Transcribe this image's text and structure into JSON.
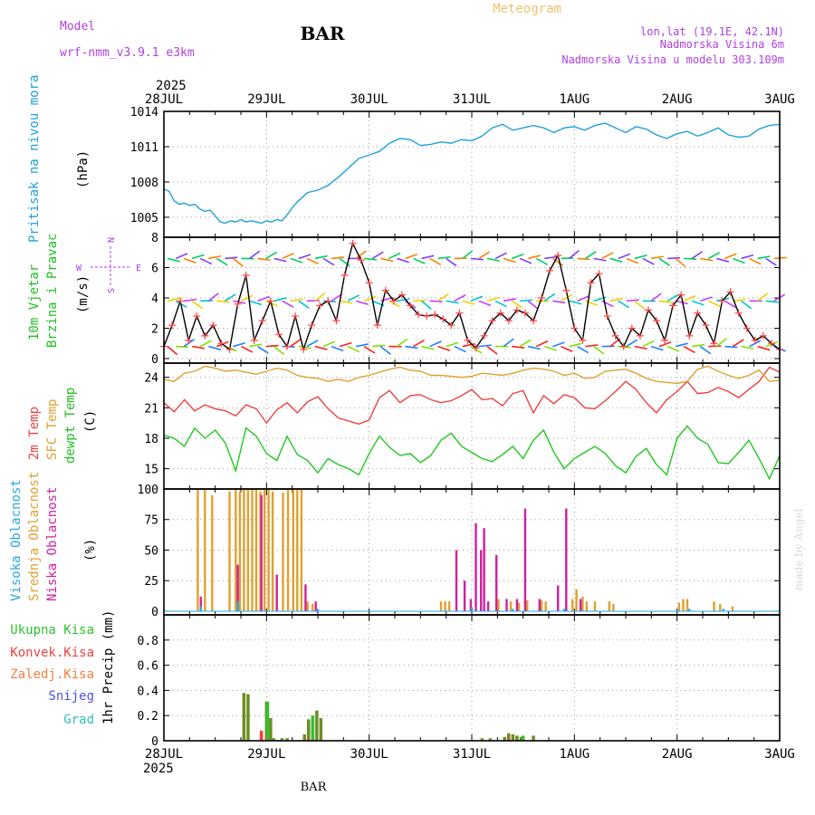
{
  "header": {
    "model_label": "Model",
    "model_name": "wrf-nmm_v3.9.1  e3km",
    "station": "BAR",
    "product": "Meteogram",
    "lonlat": "lon,lat (19.1E, 42.1N)",
    "altitude": "Nadmorska Visina 6m",
    "model_altitude": "Nadmorska Visina u modelu 303.109m",
    "year": "2025",
    "footer_station": "BAR",
    "credit": "made by Angel"
  },
  "colors": {
    "pressure": "#1fa0dc",
    "temp2m": "#f04040",
    "sfc_temp": "#e0a030",
    "dewpt": "#20c820",
    "cloud_high": "#2aa8e0",
    "cloud_mid": "#e0a030",
    "cloud_low": "#d020a0",
    "precip_total": "#30c030",
    "precip_conv": "#f04040",
    "precip_frz": "#f08040",
    "snow": "#5050e0",
    "hail": "#30c0c0",
    "wind_text": "#20c020",
    "wind_dir_text": "#b040e0",
    "bar_olive": "#6b8e23"
  },
  "chart_data": [
    {
      "type": "line",
      "name": "pressure-panel",
      "ylabel_main": "Pritisak na nivou mora",
      "unit": "(hPa)",
      "ylim": [
        1003.3,
        1014
      ],
      "yticks": [
        1005,
        1008,
        1011,
        1014
      ],
      "x_ticks": [
        "28JUL",
        "29JUL",
        "30JUL",
        "31JUL",
        "1AUG",
        "2AUG",
        "3AUG"
      ],
      "series": [
        {
          "color": "pressure",
          "x": [
            0,
            0.05,
            0.1,
            0.15,
            0.2,
            0.25,
            0.3,
            0.35,
            0.4,
            0.45,
            0.5,
            0.55,
            0.6,
            0.65,
            0.7,
            0.75,
            0.8,
            0.85,
            0.9,
            0.95,
            1.0,
            1.05,
            1.1,
            1.15,
            1.2,
            1.25,
            1.3,
            1.35,
            1.4,
            1.5,
            1.6,
            1.7,
            1.8,
            1.9,
            2.0,
            2.1,
            2.2,
            2.3,
            2.4,
            2.5,
            2.6,
            2.7,
            2.8,
            2.9,
            3.0,
            3.1,
            3.2,
            3.3,
            3.4,
            3.5,
            3.6,
            3.7,
            3.8,
            3.9,
            4.0,
            4.1,
            4.2,
            4.3,
            4.4,
            4.5,
            4.6,
            4.7,
            4.8,
            4.9,
            5.0,
            5.1,
            5.2,
            5.3,
            5.4,
            5.5,
            5.6,
            5.7,
            5.8,
            5.9,
            6.0
          ],
          "values": [
            1007.4,
            1007.2,
            1006.4,
            1006.1,
            1006.2,
            1006.0,
            1006.1,
            1005.7,
            1005.5,
            1005.6,
            1005.1,
            1004.6,
            1004.5,
            1004.7,
            1004.6,
            1004.8,
            1004.6,
            1004.7,
            1004.6,
            1004.5,
            1004.7,
            1004.6,
            1004.8,
            1004.7,
            1005.2,
            1005.8,
            1006.3,
            1006.7,
            1007.1,
            1007.3,
            1007.7,
            1008.4,
            1009.2,
            1010.0,
            1010.3,
            1010.6,
            1011.3,
            1011.7,
            1011.6,
            1011.1,
            1011.2,
            1011.4,
            1011.3,
            1011.6,
            1011.5,
            1011.9,
            1012.6,
            1012.9,
            1012.4,
            1012.6,
            1012.8,
            1012.6,
            1012.2,
            1012.6,
            1012.7,
            1012.4,
            1012.8,
            1013.0,
            1012.6,
            1012.2,
            1012.7,
            1012.5,
            1012.0,
            1011.7,
            1012.1,
            1012.3,
            1011.9,
            1012.2,
            1012.6,
            1012.0,
            1011.8,
            1011.9,
            1012.5,
            1012.8,
            1012.9
          ]
        }
      ]
    },
    {
      "type": "line",
      "name": "wind-panel",
      "ylabel_main": "10m Vjetar",
      "ylabel_sub": "Brzina i Pravac",
      "unit": "(m/s)",
      "compass": [
        "W",
        "E",
        "S",
        "N"
      ],
      "ylim": [
        -0.3,
        8
      ],
      "yticks": [
        0,
        2,
        4,
        6,
        8
      ],
      "series": [
        {
          "color": "#000000",
          "x": [
            0,
            0.08,
            0.16,
            0.24,
            0.32,
            0.4,
            0.48,
            0.56,
            0.64,
            0.72,
            0.8,
            0.88,
            0.96,
            1.04,
            1.12,
            1.2,
            1.28,
            1.36,
            1.44,
            1.52,
            1.6,
            1.68,
            1.76,
            1.84,
            1.92,
            2.0,
            2.08,
            2.16,
            2.24,
            2.32,
            2.4,
            2.48,
            2.56,
            2.64,
            2.72,
            2.8,
            2.88,
            2.96,
            3.04,
            3.12,
            3.2,
            3.28,
            3.36,
            3.44,
            3.52,
            3.6,
            3.68,
            3.76,
            3.84,
            3.92,
            4.0,
            4.08,
            4.16,
            4.24,
            4.32,
            4.4,
            4.48,
            4.56,
            4.64,
            4.72,
            4.8,
            4.88,
            4.96,
            5.04,
            5.12,
            5.2,
            5.28,
            5.36,
            5.44,
            5.52,
            5.6,
            5.68,
            5.76,
            5.84,
            5.92,
            6.0
          ],
          "values": [
            0.8,
            2.2,
            3.8,
            1.2,
            2.8,
            1.5,
            2.2,
            1.0,
            0.6,
            3.6,
            5.5,
            1.2,
            2.5,
            3.8,
            1.6,
            0.8,
            2.8,
            0.6,
            2.2,
            3.5,
            3.8,
            2.5,
            5.5,
            7.6,
            6.5,
            5.0,
            2.2,
            4.5,
            3.8,
            4.2,
            3.5,
            2.9,
            2.8,
            2.9,
            2.6,
            2.2,
            3.0,
            1.2,
            0.7,
            1.5,
            2.5,
            3.0,
            2.5,
            3.2,
            3.0,
            2.5,
            4.0,
            5.8,
            6.8,
            4.5,
            2.0,
            1.2,
            5.0,
            5.6,
            2.8,
            1.5,
            0.8,
            2.0,
            1.5,
            3.2,
            2.5,
            1.2,
            3.5,
            4.2,
            1.5,
            3.0,
            2.2,
            1.0,
            3.8,
            4.4,
            3.0,
            2.0,
            1.2,
            1.5,
            1.0,
            0.6
          ]
        }
      ],
      "wind_barb_rows": [
        0.8,
        3.8,
        6.6
      ]
    },
    {
      "type": "line",
      "name": "temperature-panel",
      "ylabel_main": "2m Temp",
      "ylabel_mid": "SFC Temp",
      "ylabel_sub": "dewpt Temp",
      "unit": "(C)",
      "ylim": [
        13,
        25.4
      ],
      "yticks": [
        15,
        18,
        21,
        24
      ],
      "series": [
        {
          "color": "temp2m",
          "x": [
            0,
            0.1,
            0.2,
            0.3,
            0.4,
            0.5,
            0.6,
            0.7,
            0.8,
            0.9,
            1.0,
            1.1,
            1.2,
            1.3,
            1.4,
            1.5,
            1.6,
            1.7,
            1.8,
            1.9,
            2.0,
            2.1,
            2.2,
            2.3,
            2.4,
            2.5,
            2.6,
            2.7,
            2.8,
            2.9,
            3.0,
            3.1,
            3.2,
            3.3,
            3.4,
            3.5,
            3.6,
            3.7,
            3.8,
            3.9,
            4.0,
            4.1,
            4.2,
            4.3,
            4.4,
            4.5,
            4.6,
            4.7,
            4.8,
            4.9,
            5.0,
            5.1,
            5.2,
            5.3,
            5.4,
            5.5,
            5.6,
            5.7,
            5.8,
            5.9,
            6.0
          ],
          "values": [
            21.5,
            20.6,
            21.8,
            20.7,
            21.3,
            20.9,
            20.7,
            20.2,
            21.3,
            20.9,
            19.5,
            20.8,
            21.5,
            20.5,
            21.6,
            22.1,
            20.9,
            20.0,
            19.7,
            19.4,
            19.8,
            22.0,
            22.7,
            21.5,
            22.2,
            22.3,
            21.8,
            21.5,
            21.7,
            22.2,
            22.8,
            21.8,
            21.9,
            21.2,
            22.4,
            22.7,
            20.5,
            22.2,
            21.4,
            22.3,
            22.0,
            21.0,
            20.9,
            21.7,
            22.6,
            23.6,
            22.8,
            21.5,
            20.5,
            21.8,
            22.6,
            23.6,
            22.4,
            22.5,
            23.0,
            22.6,
            22.0,
            22.8,
            23.6,
            25.0,
            24.5
          ]
        },
        {
          "color": "sfc_temp",
          "x": [
            0,
            0.1,
            0.2,
            0.3,
            0.4,
            0.5,
            0.6,
            0.7,
            0.8,
            0.9,
            1.0,
            1.1,
            1.2,
            1.3,
            1.4,
            1.5,
            1.6,
            1.7,
            1.8,
            1.9,
            2.0,
            2.1,
            2.2,
            2.3,
            2.4,
            2.5,
            2.6,
            2.7,
            2.8,
            2.9,
            3.0,
            3.1,
            3.2,
            3.3,
            3.4,
            3.5,
            3.6,
            3.7,
            3.8,
            3.9,
            4.0,
            4.1,
            4.2,
            4.3,
            4.4,
            4.5,
            4.6,
            4.7,
            4.8,
            4.9,
            5.0,
            5.1,
            5.2,
            5.3,
            5.4,
            5.5,
            5.6,
            5.7,
            5.8,
            5.9,
            6.0
          ],
          "values": [
            23.8,
            23.6,
            24.4,
            24.6,
            25.1,
            24.9,
            24.6,
            24.7,
            24.5,
            24.3,
            24.6,
            24.9,
            24.7,
            24.2,
            24.0,
            23.9,
            23.6,
            23.8,
            23.6,
            24.0,
            24.2,
            24.5,
            24.8,
            25.0,
            24.7,
            24.6,
            24.2,
            24.2,
            24.1,
            24.0,
            24.1,
            24.4,
            24.3,
            24.2,
            24.4,
            24.7,
            24.9,
            24.8,
            24.6,
            24.2,
            24.4,
            23.9,
            24.0,
            24.6,
            24.7,
            24.8,
            24.4,
            23.9,
            23.6,
            23.5,
            23.4,
            23.6,
            24.8,
            25.1,
            24.6,
            24.2,
            23.9,
            24.2,
            24.7,
            23.6,
            23.7
          ]
        },
        {
          "color": "dewpt",
          "x": [
            0,
            0.1,
            0.2,
            0.3,
            0.4,
            0.5,
            0.6,
            0.7,
            0.8,
            0.9,
            1.0,
            1.1,
            1.2,
            1.3,
            1.4,
            1.5,
            1.6,
            1.7,
            1.8,
            1.9,
            2.0,
            2.1,
            2.2,
            2.3,
            2.4,
            2.5,
            2.6,
            2.7,
            2.8,
            2.9,
            3.0,
            3.1,
            3.2,
            3.3,
            3.4,
            3.5,
            3.6,
            3.7,
            3.8,
            3.9,
            4.0,
            4.1,
            4.2,
            4.3,
            4.4,
            4.5,
            4.6,
            4.7,
            4.8,
            4.9,
            5.0,
            5.1,
            5.2,
            5.3,
            5.4,
            5.5,
            5.6,
            5.7,
            5.8,
            5.9,
            6.0
          ],
          "values": [
            18.3,
            18.0,
            17.2,
            19.0,
            18.0,
            18.8,
            17.5,
            14.8,
            19.0,
            18.2,
            16.5,
            15.8,
            18.2,
            16.4,
            15.8,
            14.6,
            16.0,
            15.4,
            15.0,
            14.4,
            16.5,
            18.2,
            17.1,
            16.3,
            16.5,
            15.6,
            16.3,
            17.8,
            18.5,
            17.2,
            16.6,
            16.0,
            15.7,
            16.4,
            17.2,
            16.0,
            17.8,
            18.8,
            16.6,
            15.0,
            16.0,
            16.6,
            17.2,
            16.5,
            15.3,
            14.6,
            16.2,
            17.0,
            15.4,
            14.4,
            18.0,
            19.2,
            18.0,
            17.4,
            15.6,
            15.5,
            16.6,
            17.8,
            16.0,
            14.0,
            16.3
          ]
        }
      ]
    },
    {
      "type": "bar",
      "name": "cloud-panel",
      "ylabel_high": "Visoka Oblacnost",
      "ylabel_mid": "Srednja Oblacnost",
      "ylabel_low": "Niska Oblacnost",
      "unit": "(%)",
      "ylim": [
        -3,
        100
      ],
      "yticks": [
        0,
        25,
        50,
        75,
        100
      ],
      "series": [
        {
          "color": "cloud_mid",
          "x": [
            0.33,
            0.4,
            0.47,
            0.64,
            0.7,
            0.74,
            0.78,
            0.82,
            0.86,
            0.9,
            0.94,
            0.98,
            1.02,
            1.06,
            1.16,
            1.21,
            1.26,
            1.3,
            1.34,
            1.4,
            1.45,
            2.7,
            2.74,
            2.78,
            3.26,
            3.38,
            3.46,
            3.54,
            3.68,
            3.72,
            3.92,
            3.98,
            4.02,
            4.08,
            4.12,
            4.2,
            4.34,
            4.38,
            5.02,
            5.06,
            5.1,
            5.36,
            5.42,
            5.54
          ],
          "values": [
            100,
            100,
            95,
            98,
            100,
            98,
            100,
            100,
            100,
            100,
            98,
            100,
            100,
            98,
            97,
            100,
            100,
            100,
            100,
            8,
            6,
            8,
            8,
            8,
            10,
            8,
            7,
            9,
            9,
            8,
            9,
            10,
            18,
            12,
            8,
            8,
            8,
            6,
            7,
            10,
            10,
            8,
            6,
            4
          ]
        },
        {
          "color": "cloud_low",
          "x": [
            0.36,
            0.72,
            0.95,
            1.1,
            1.38,
            1.48,
            2.85,
            2.93,
            2.99,
            3.04,
            3.09,
            3.12,
            3.16,
            3.24,
            3.34,
            3.44,
            3.52,
            3.66,
            3.84,
            3.92,
            4.06
          ],
          "values": [
            12,
            38,
            95,
            30,
            22,
            8,
            50,
            25,
            10,
            72,
            50,
            68,
            8,
            46,
            10,
            10,
            84,
            10,
            21,
            84,
            10
          ]
        },
        {
          "color": "cloud_high",
          "x": [
            0.36,
            0.72,
            1.5,
            3.0,
            3.4,
            3.9,
            5.12,
            5.45
          ],
          "values": [
            4,
            8,
            2,
            3,
            2,
            2,
            2,
            2
          ]
        }
      ]
    },
    {
      "type": "bar",
      "name": "precip-panel",
      "ylabel_total": "Ukupna Kisa",
      "ylabel_conv": "Konvek.Kisa",
      "ylabel_frz": "Zaledj.Kisa",
      "ylabel_snow": "Snijeg",
      "ylabel_hail": "Grad",
      "unit": "1hr Precip (mm)",
      "ylim": [
        0,
        1.0
      ],
      "yticks": [
        0,
        0.2,
        0.4,
        0.6,
        0.8
      ],
      "x_ticks": [
        "28JUL",
        "29JUL",
        "30JUL",
        "31JUL",
        "1AUG",
        "2AUG",
        "3AUG"
      ],
      "series": [
        {
          "color": "bar_olive",
          "x": [
            0.78,
            0.82,
            0.95,
            1.0,
            1.04,
            1.07,
            1.15,
            1.2,
            1.37,
            1.41,
            1.45,
            1.49,
            1.53,
            3.1,
            3.18,
            3.32,
            3.36,
            3.4,
            3.44,
            3.48,
            3.6
          ],
          "values": [
            0.38,
            0.37,
            0.06,
            0.31,
            0.18,
            0.02,
            0.02,
            0.02,
            0.05,
            0.17,
            0.16,
            0.24,
            0.18,
            0.02,
            0.02,
            0.03,
            0.06,
            0.05,
            0.04,
            0.03,
            0.04
          ]
        },
        {
          "color": "precip_conv",
          "x": [
            0.95,
            1.0,
            1.41,
            3.36
          ],
          "values": [
            0.08,
            0.05,
            0.02,
            0.02
          ]
        },
        {
          "color": "precip_total",
          "x": [
            1.01,
            1.45,
            3.5
          ],
          "values": [
            0.31,
            0.2,
            0.04
          ]
        }
      ]
    }
  ]
}
